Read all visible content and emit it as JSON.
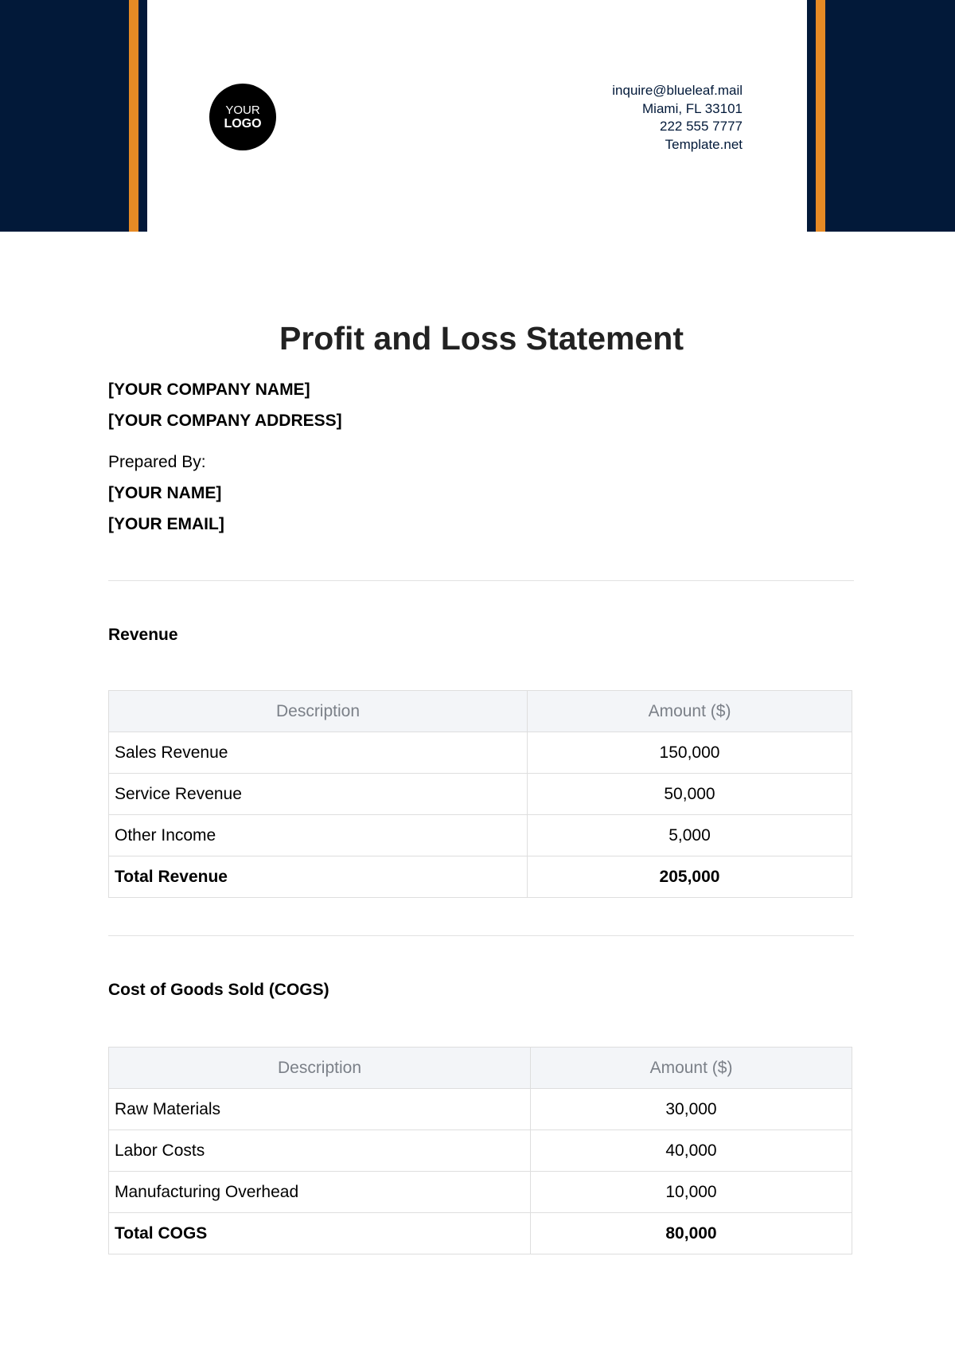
{
  "header": {
    "colors": {
      "navy": "#021939",
      "orange": "#e68a25"
    },
    "logo": {
      "line1": "YOUR",
      "line2": "LOGO"
    },
    "contact": [
      "inquire@blueleaf.mail",
      "Miami, FL 33101",
      "222 555 7777",
      "Template.net"
    ]
  },
  "document": {
    "title": "Profit and Loss Statement",
    "company_name": "[YOUR COMPANY NAME]",
    "company_address": "[YOUR COMPANY ADDRESS]",
    "prepared_by_label": "Prepared By:",
    "your_name": "[YOUR NAME]",
    "your_email": "[YOUR EMAIL]"
  },
  "revenue": {
    "heading": "Revenue",
    "columns": [
      "Description",
      "Amount ($)"
    ],
    "rows": [
      {
        "description": "Sales Revenue",
        "amount": "150,000"
      },
      {
        "description": "Service Revenue",
        "amount": "50,000"
      },
      {
        "description": "Other Income",
        "amount": "5,000"
      }
    ],
    "total": {
      "description": "Total Revenue",
      "amount": "205,000"
    }
  },
  "cogs": {
    "heading": "Cost of Goods Sold (COGS)",
    "columns": [
      "Description",
      "Amount ($)"
    ],
    "rows": [
      {
        "description": "Raw Materials",
        "amount": "30,000"
      },
      {
        "description": "Labor Costs",
        "amount": "40,000"
      },
      {
        "description": "Manufacturing Overhead",
        "amount": "10,000"
      }
    ],
    "total": {
      "description": "Total COGS",
      "amount": "80,000"
    }
  }
}
